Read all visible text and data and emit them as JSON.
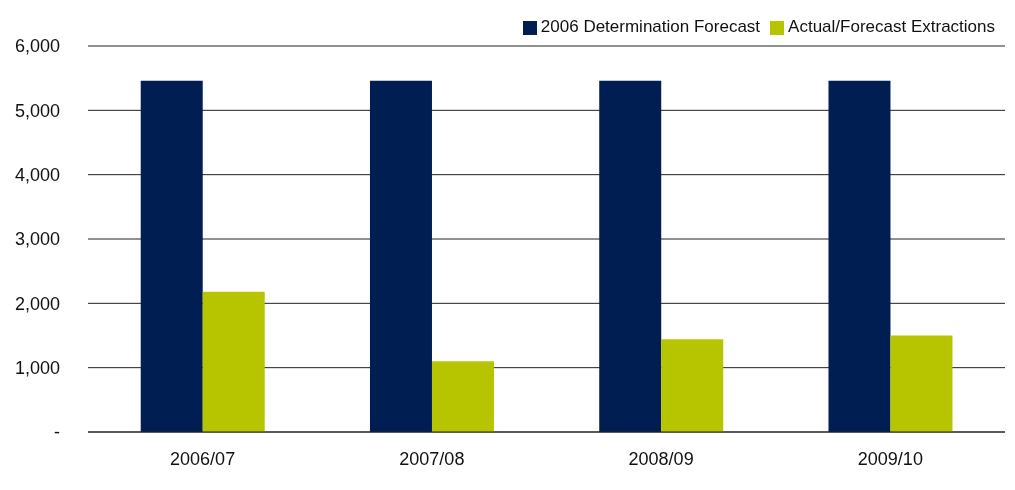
{
  "chart_data": {
    "type": "bar",
    "categories": [
      "2006/07",
      "2007/08",
      "2008/09",
      "2009/10"
    ],
    "series": [
      {
        "name": "2006 Determination Forecast",
        "color": "#001e52",
        "values": [
          5460,
          5460,
          5460,
          5460
        ]
      },
      {
        "name": "Actual/Forecast Extractions",
        "color": "#b7c400",
        "values": [
          2180,
          1100,
          1440,
          1500
        ]
      }
    ],
    "ylim": [
      0,
      6000
    ],
    "yticks": [
      {
        "value": 0,
        "label": "-"
      },
      {
        "value": 1000,
        "label": "1,000"
      },
      {
        "value": 2000,
        "label": "2,000"
      },
      {
        "value": 3000,
        "label": "3,000"
      },
      {
        "value": 4000,
        "label": "4,000"
      },
      {
        "value": 5000,
        "label": "5,000"
      },
      {
        "value": 6000,
        "label": "6,000"
      }
    ],
    "grid": "y",
    "legend": "top right"
  }
}
